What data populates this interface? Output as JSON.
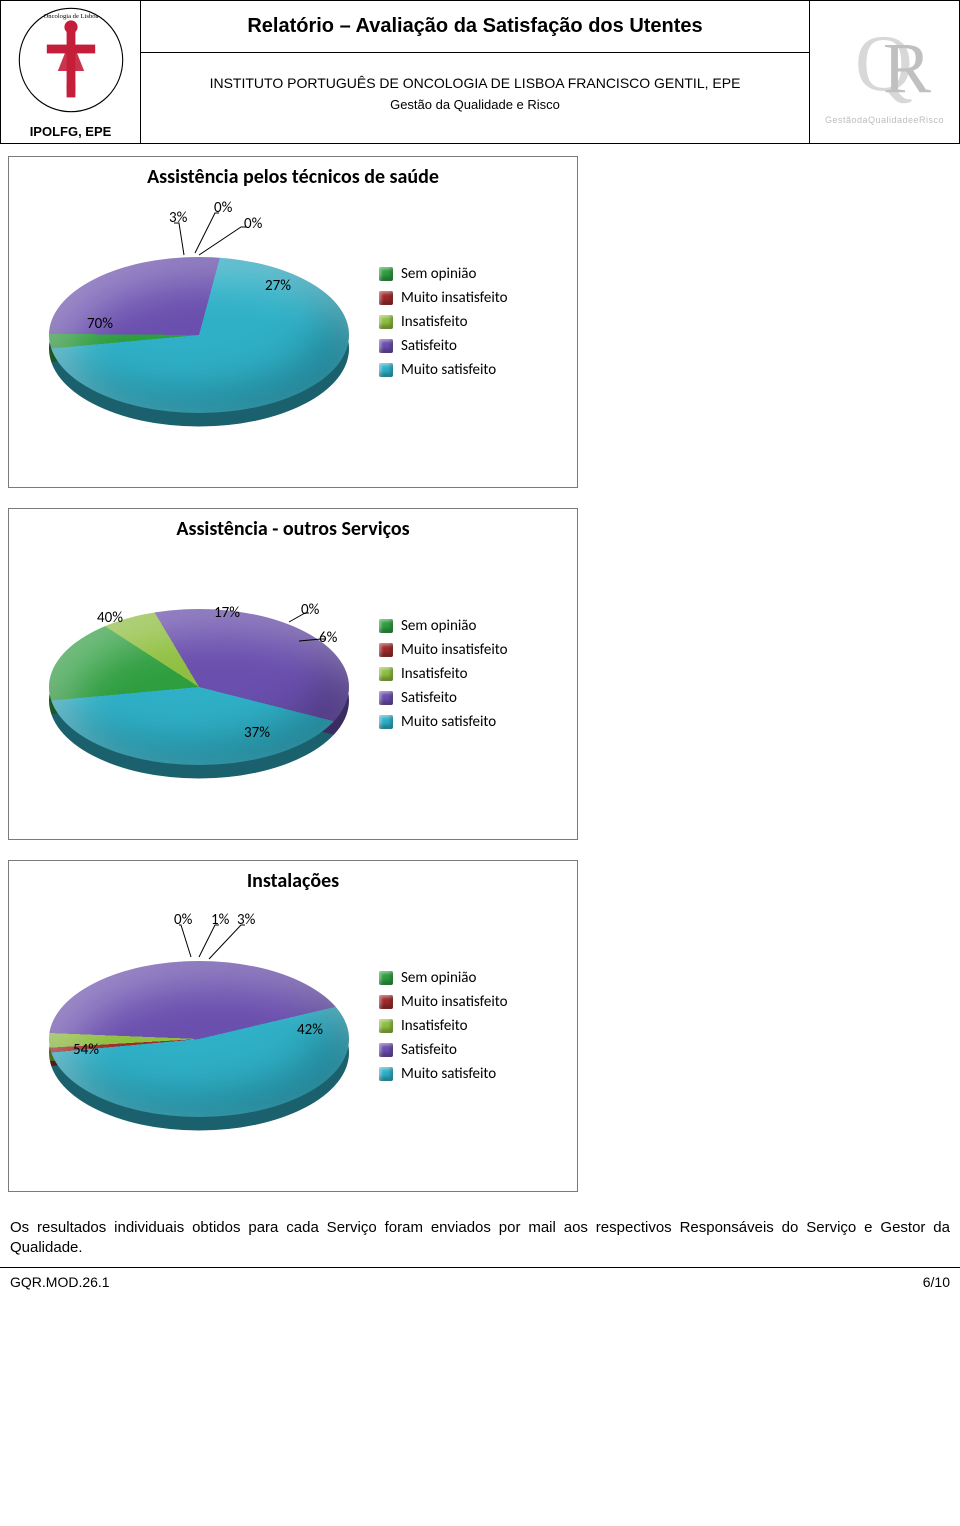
{
  "header": {
    "title": "Relatório – Avaliação da Satisfação dos Utentes",
    "institution": "INSTITUTO PORTUGUÊS DE ONCOLOGIA DE LISBOA FRANCISCO GENTIL, EPE",
    "department": "Gestão da Qualidade e Risco",
    "logo_caption": "IPOLFG, EPE",
    "qr_caption": "GestãodaQualidadeeRisco",
    "logo_color": "#c41e3a",
    "qr_color": "#c8c8c8"
  },
  "legend_labels": {
    "sem_opiniao": "Sem opinião",
    "muito_insatisfeito": "Muito insatisfeito",
    "insatisfeito": "Insatisfeito",
    "satisfeito": "Satisfeito",
    "muito_satisfeito": "Muito satisfeito"
  },
  "legend_colors": {
    "sem_opiniao": "#2e9e3f",
    "muito_insatisfeito": "#a02b2b",
    "insatisfeito": "#8fbf3f",
    "satisfeito": "#6a4fae",
    "muito_satisfeito": "#2fb0c7"
  },
  "chart1": {
    "title": "Assistência pelos técnicos de saúde",
    "type": "pie",
    "slices": [
      {
        "key": "sem_opiniao",
        "value": 3,
        "label": "3%"
      },
      {
        "key": "muito_insatisfeito",
        "value": 0,
        "label": "0%"
      },
      {
        "key": "insatisfeito",
        "value": 0,
        "label": "0%"
      },
      {
        "key": "satisfeito",
        "value": 27,
        "label": "27%"
      },
      {
        "key": "muito_satisfeito",
        "value": 70,
        "label": "70%"
      }
    ]
  },
  "chart2": {
    "title": "Assistência - outros Serviços",
    "type": "pie",
    "slices": [
      {
        "key": "sem_opiniao",
        "value": 17,
        "label": "17%"
      },
      {
        "key": "muito_insatisfeito",
        "value": 0,
        "label": "0%"
      },
      {
        "key": "insatisfeito",
        "value": 6,
        "label": "6%"
      },
      {
        "key": "satisfeito",
        "value": 37,
        "label": "37%"
      },
      {
        "key": "muito_satisfeito",
        "value": 40,
        "label": "40%"
      }
    ]
  },
  "chart3": {
    "title": "Instalações",
    "type": "pie",
    "slices": [
      {
        "key": "sem_opiniao",
        "value": 0,
        "label": "0%"
      },
      {
        "key": "muito_insatisfeito",
        "value": 1,
        "label": "1%"
      },
      {
        "key": "insatisfeito",
        "value": 3,
        "label": "3%"
      },
      {
        "key": "satisfeito",
        "value": 42,
        "label": "42%"
      },
      {
        "key": "muito_satisfeito",
        "value": 54,
        "label": "54%"
      }
    ]
  },
  "body_text": "Os resultados individuais obtidos para cada Serviço foram enviados por mail aos respectivos Responsáveis do Serviço e Gestor da Qualidade.",
  "footer": {
    "doc_id": "GQR.MOD.26.1",
    "page_num": "6/10"
  }
}
